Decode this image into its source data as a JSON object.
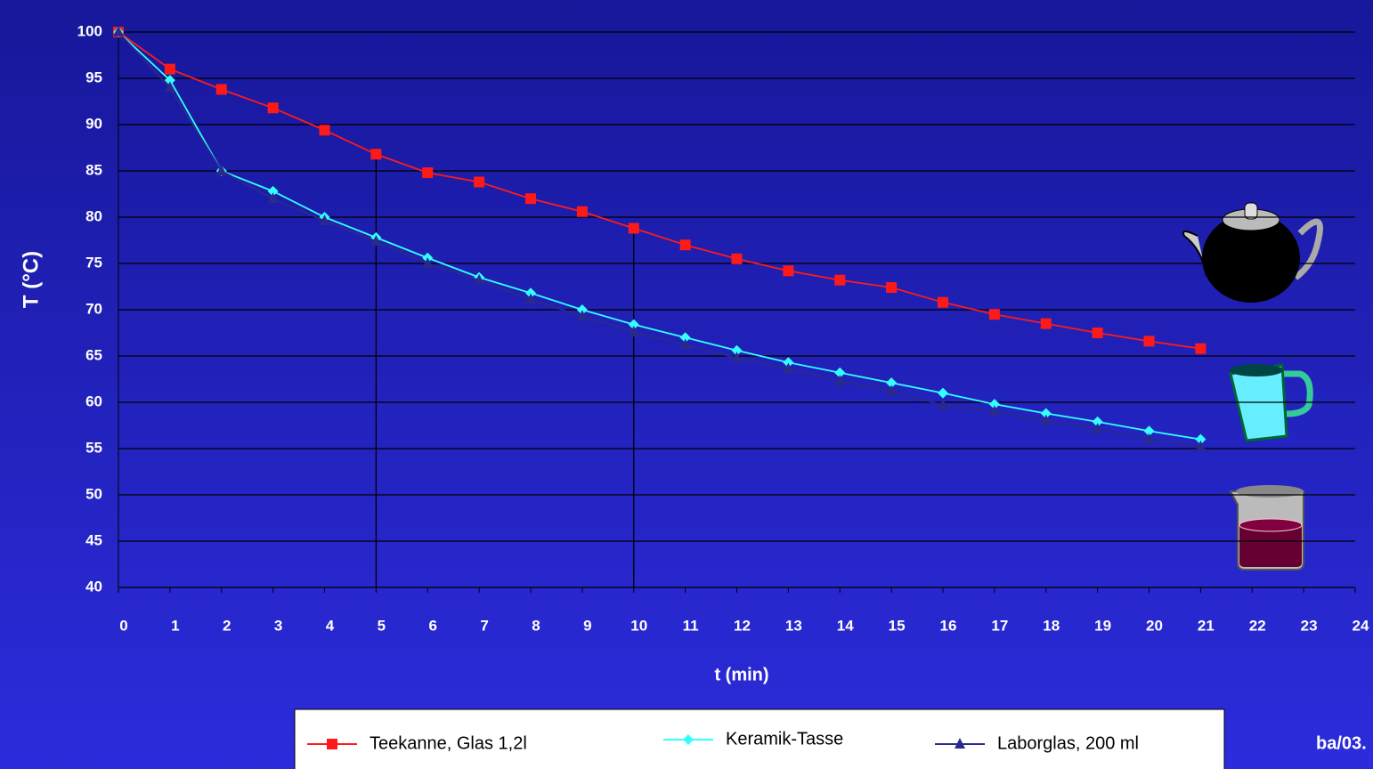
{
  "chart_data": {
    "type": "line",
    "x_label": "t (min)",
    "y_label": "T (°C)",
    "x": [
      0,
      1,
      2,
      3,
      4,
      5,
      6,
      7,
      8,
      9,
      10,
      11,
      12,
      13,
      14,
      15,
      16,
      17,
      18,
      19,
      20,
      21
    ],
    "series": [
      {
        "name": "Teekanne, Glas 1,2l",
        "color": "#ff1a1a",
        "marker": "square",
        "values": [
          100,
          96,
          93.8,
          91.8,
          89.4,
          86.8,
          84.8,
          83.8,
          82,
          80.6,
          78.8,
          77,
          75.5,
          74.2,
          73.2,
          72.4,
          70.8,
          69.5,
          68.5,
          67.5,
          66.6,
          65.8
        ]
      },
      {
        "name": "Keramik-Tasse",
        "color": "#33ffff",
        "marker": "diamond",
        "values": [
          100,
          94.8,
          85,
          82.8,
          80,
          77.8,
          75.6,
          73.5,
          71.8,
          70,
          68.4,
          67,
          65.6,
          64.3,
          63.2,
          62.1,
          61,
          59.8,
          58.8,
          57.9,
          56.9,
          56
        ]
      },
      {
        "name": "Laborglas, 200 ml",
        "color": "#2a2a8c",
        "marker": "triangle",
        "values": [
          100,
          94,
          85,
          82,
          79.6,
          77.4,
          75,
          73.2,
          71.1,
          69.3,
          67.6,
          66.2,
          64.8,
          63.6,
          62.3,
          61.2,
          59.7,
          59,
          58,
          57.1,
          56,
          55.2
        ]
      }
    ],
    "xlim": [
      0,
      24
    ],
    "xticks": [
      0,
      1,
      2,
      3,
      4,
      5,
      6,
      7,
      8,
      9,
      10,
      11,
      12,
      13,
      14,
      15,
      16,
      17,
      18,
      19,
      20,
      21,
      22,
      23,
      24
    ],
    "ylim": [
      40,
      100
    ],
    "yticks": [
      40,
      45,
      50,
      55,
      60,
      65,
      70,
      75,
      80,
      85,
      90,
      95,
      100
    ],
    "grid": true,
    "drop_lines": [
      5,
      10
    ],
    "annotation": "ba/03."
  }
}
